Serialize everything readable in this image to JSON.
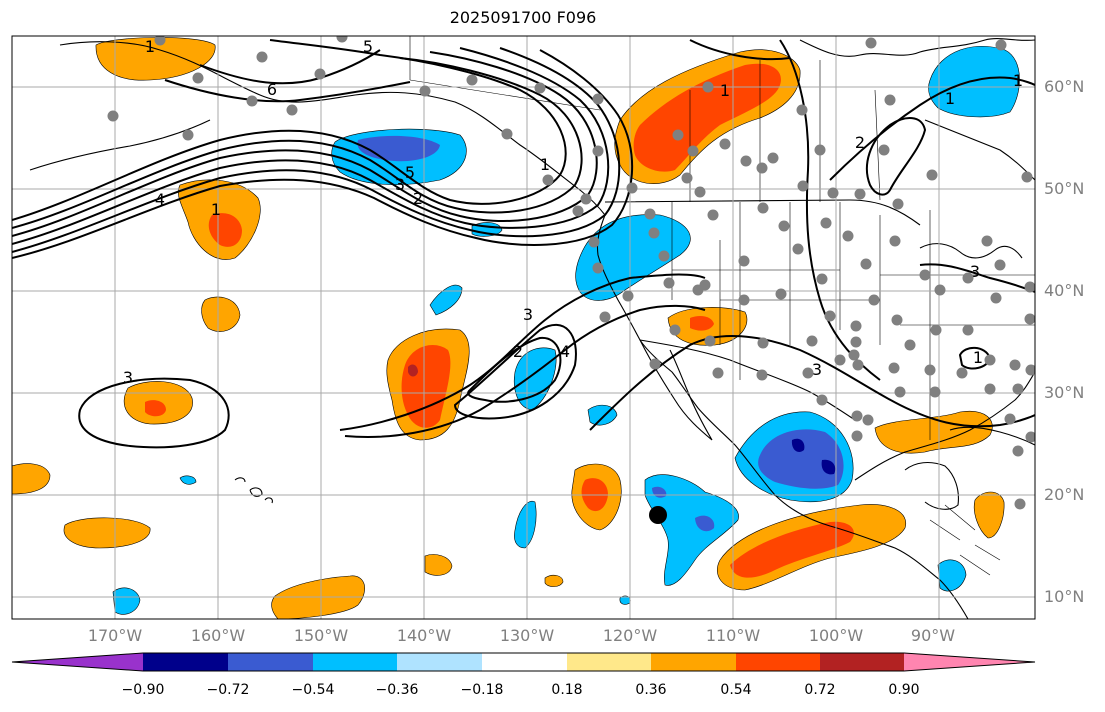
{
  "title": "2025091700 F096",
  "lat_labels": [
    "60°N",
    "50°N",
    "40°N",
    "30°N",
    "20°N",
    "10°N"
  ],
  "lon_labels": [
    "170°W",
    "160°W",
    "150°W",
    "140°W",
    "130°W",
    "120°W",
    "110°W",
    "100°W",
    "90°W"
  ],
  "contour_labels": [
    "6",
    "5",
    "4",
    "3",
    "2",
    "1",
    "1",
    "5",
    "3",
    "2",
    "4",
    "3",
    "2",
    "1",
    "3",
    "3",
    "1",
    "1",
    "1",
    "1"
  ],
  "colorbar": {
    "ticks": [
      "−0.90",
      "−0.72",
      "−0.54",
      "−0.36",
      "−0.18",
      "0.18",
      "0.36",
      "0.54",
      "0.72",
      "0.90"
    ],
    "colors": [
      "#9932cc",
      "#00008b",
      "#3a5bd1",
      "#00bfff",
      "#afe3ff",
      "#ffffff",
      "#ffe88a",
      "#ffa500",
      "#ff4500",
      "#b22222",
      "#ff85b0"
    ]
  },
  "chart_data": {
    "type": "map",
    "title": "2025091700 F096",
    "projection": "equirectangular",
    "lon_range": [
      -180,
      -80
    ],
    "lat_range": [
      8,
      65
    ],
    "fill_levels": [
      -0.9,
      -0.72,
      -0.54,
      -0.36,
      -0.18,
      0.18,
      0.36,
      0.54,
      0.72,
      0.9
    ],
    "marker": {
      "lon": -116,
      "lat": 18
    }
  }
}
